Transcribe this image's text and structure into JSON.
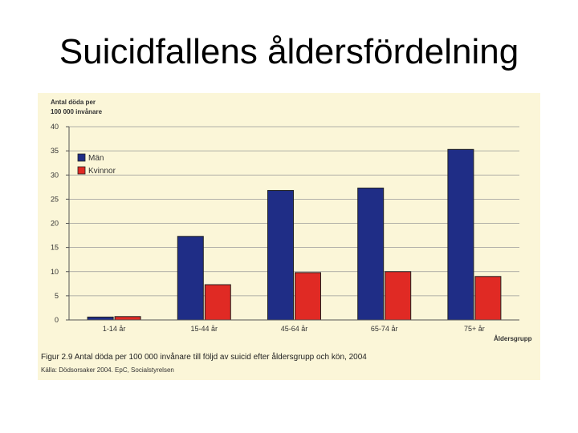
{
  "slide": {
    "title": "Suicidfallens åldersfördelning"
  },
  "colors": {
    "men": "#1f2d86",
    "women": "#e02a24",
    "panel": "#fbf6d8"
  },
  "chart_data": {
    "type": "bar",
    "ylabel_line1": "Antal döda per",
    "ylabel_line2": "100 000 invånare",
    "xlabel": "Åldersgrupp",
    "categories": [
      "1-14 år",
      "15-44 år",
      "45-64 år",
      "65-74 år",
      "75+ år"
    ],
    "series": [
      {
        "name": "Män",
        "values": [
          0.6,
          17.3,
          26.8,
          27.3,
          35.3
        ]
      },
      {
        "name": "Kvinnor",
        "values": [
          0.7,
          7.3,
          9.8,
          10.0,
          9.0
        ]
      }
    ],
    "ylim": [
      0,
      40
    ],
    "yticks": [
      "0",
      "5",
      "10",
      "15",
      "20",
      "25",
      "30",
      "35",
      "40"
    ],
    "legend_position": "top-left",
    "caption": "Figur 2.9  Antal döda per 100 000 invånare till följd av suicid efter åldersgrupp och kön, 2004",
    "source": "Källa: Dödsorsaker 2004. EpC, Socialstyrelsen"
  }
}
